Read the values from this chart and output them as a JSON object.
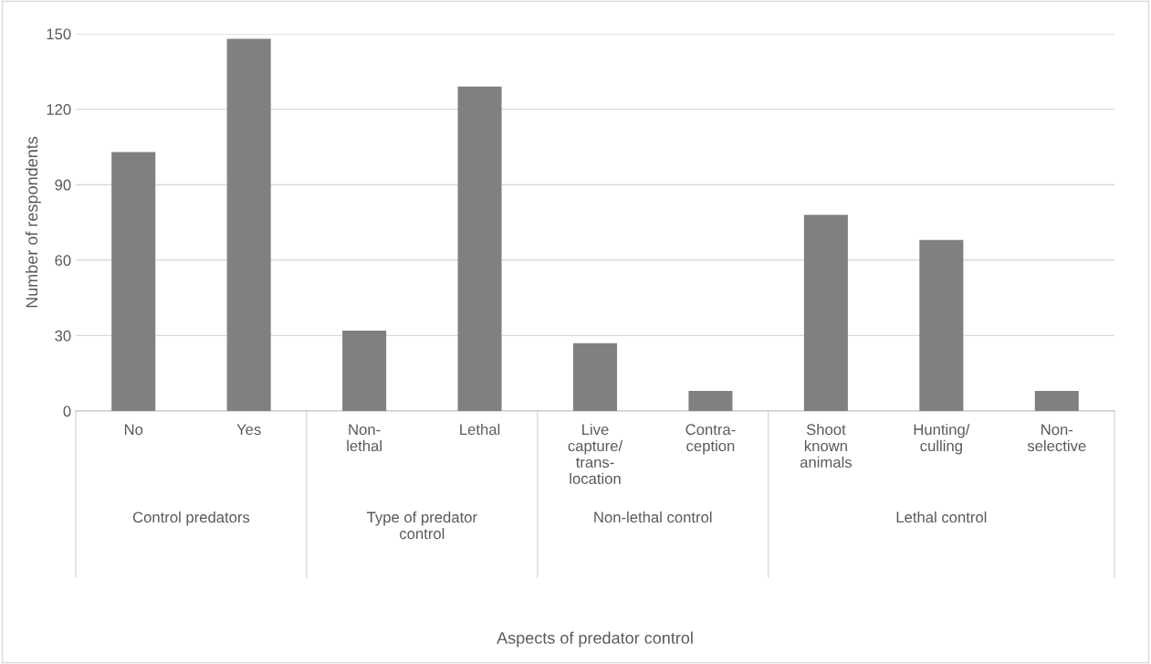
{
  "chart_data": {
    "type": "bar",
    "ylabel": "Number of respondents",
    "categories": [
      "No",
      "Yes",
      "Non-\nlethal",
      "Lethal",
      "Live\ncapture/\ntrans-\nlocation",
      "Contra-\nception",
      "Shoot\nknown\nanimals",
      "Hunting/\nculling",
      "Non-\nselective"
    ],
    "values": [
      103,
      148,
      32,
      129,
      27,
      8,
      78,
      68,
      8
    ],
    "color": "#808080",
    "ylim": [
      0,
      150
    ],
    "yticks": [
      0,
      30,
      60,
      90,
      120,
      150
    ],
    "grid": "y",
    "legend": false,
    "annotations": [
      "Control predators",
      "Type of predator\ncontrol",
      "Non-lethal control",
      "Lethal control",
      "Aspects of predator control"
    ]
  }
}
